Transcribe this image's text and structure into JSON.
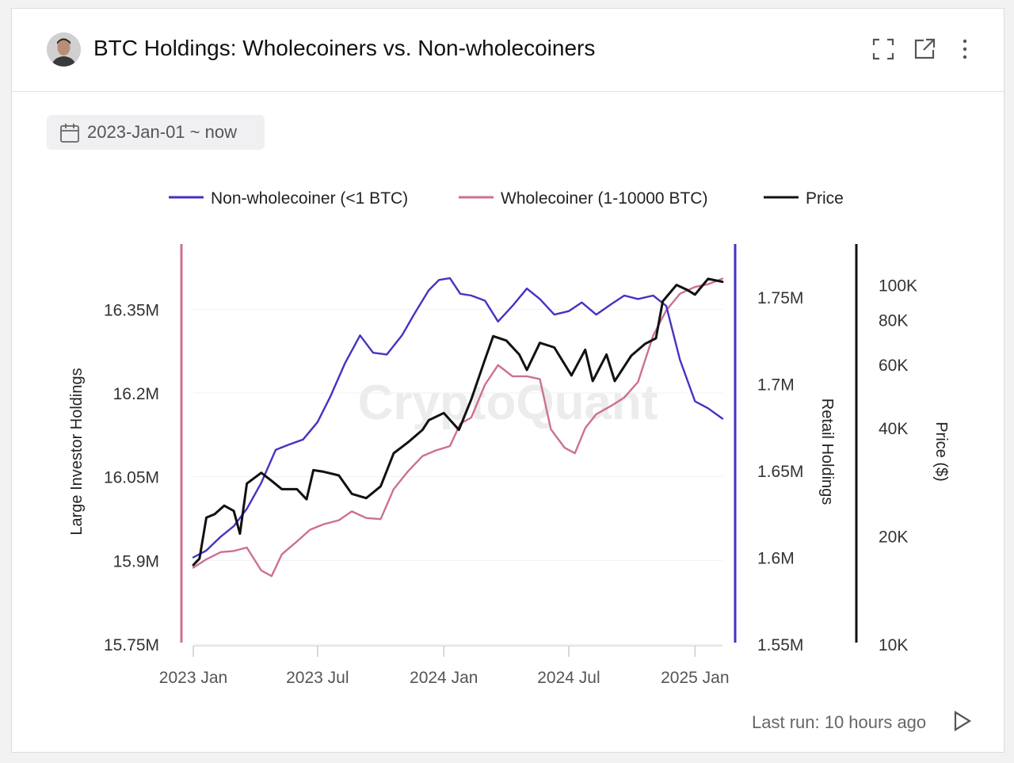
{
  "header": {
    "title": "BTC Holdings: Wholecoiners vs. Non-wholecoiners",
    "icons": [
      "fullscreen-icon",
      "open-external-icon",
      "more-vertical-icon"
    ]
  },
  "date_filter": {
    "label": "2023-Jan-01 ~ now"
  },
  "footer": {
    "last_run": "Last run: 10 hours ago"
  },
  "watermark": "CryptoQuant",
  "colors": {
    "non_wholecoiner": "#4433c2",
    "wholecoiner": "#cc6f95",
    "price": "#111111"
  },
  "chart_data": {
    "type": "line",
    "watermark": "CryptoQuant",
    "legend": [
      "Non-wholecoiner (<1 BTC)",
      "Wholecoiner (1-10000 BTC)",
      "Price"
    ],
    "legend_position": "top-center",
    "grid": true,
    "x_ticks": [
      "2023 Jan",
      "2023 Jul",
      "2024 Jan",
      "2024 Jul",
      "2025 Jan"
    ],
    "x_range": [
      "2023-01-01",
      "2025-02-10"
    ],
    "axes": {
      "left": {
        "label": "Large Investor Holdings",
        "ticks": [
          "16.35M",
          "16.2M",
          "16.05M",
          "15.9M",
          "15.75M"
        ],
        "range": [
          15.75,
          16.44
        ],
        "unit": "M BTC"
      },
      "right": {
        "label": "Retail Holdings",
        "ticks": [
          "1.75M",
          "1.7M",
          "1.65M",
          "1.6M",
          "1.55M"
        ],
        "range": [
          1.55,
          1.772
        ],
        "unit": "M BTC"
      },
      "price": {
        "label": "Price ($)",
        "ticks": [
          "100K",
          "80K",
          "60K",
          "40K",
          "20K",
          "10K"
        ],
        "range": [
          10000,
          118000
        ],
        "scale": "log"
      }
    },
    "series": [
      {
        "name": "Non-wholecoiner (<1 BTC)",
        "axis": "right",
        "color": "#4433c2",
        "x": [
          "2023-01-01",
          "2023-01-20",
          "2023-02-10",
          "2023-03-01",
          "2023-03-20",
          "2023-04-10",
          "2023-05-01",
          "2023-05-20",
          "2023-06-10",
          "2023-07-01",
          "2023-07-20",
          "2023-08-10",
          "2023-09-01",
          "2023-09-20",
          "2023-10-10",
          "2023-11-01",
          "2023-11-20",
          "2023-12-10",
          "2023-12-25",
          "2024-01-10",
          "2024-01-25",
          "2024-02-10",
          "2024-03-01",
          "2024-03-20",
          "2024-04-10",
          "2024-05-01",
          "2024-05-20",
          "2024-06-10",
          "2024-07-01",
          "2024-07-20",
          "2024-08-10",
          "2024-09-01",
          "2024-09-20",
          "2024-10-10",
          "2024-11-01",
          "2024-11-20",
          "2024-12-10",
          "2025-01-01",
          "2025-01-20",
          "2025-02-10"
        ],
        "values": [
          1.6,
          1.604,
          1.612,
          1.618,
          1.628,
          1.643,
          1.662,
          1.665,
          1.668,
          1.678,
          1.693,
          1.712,
          1.728,
          1.718,
          1.717,
          1.728,
          1.741,
          1.754,
          1.76,
          1.761,
          1.752,
          1.751,
          1.748,
          1.736,
          1.745,
          1.755,
          1.749,
          1.74,
          1.742,
          1.747,
          1.74,
          1.746,
          1.751,
          1.749,
          1.751,
          1.745,
          1.714,
          1.69,
          1.686,
          1.68
        ]
      },
      {
        "name": "Wholecoiner (1-10000 BTC)",
        "axis": "left",
        "color": "#cc6f95",
        "x": [
          "2023-01-01",
          "2023-01-20",
          "2023-02-10",
          "2023-03-01",
          "2023-03-20",
          "2023-04-10",
          "2023-04-25",
          "2023-05-10",
          "2023-06-01",
          "2023-06-20",
          "2023-07-10",
          "2023-08-01",
          "2023-08-20",
          "2023-09-10",
          "2023-10-01",
          "2023-10-20",
          "2023-11-10",
          "2023-12-01",
          "2023-12-20",
          "2024-01-10",
          "2024-01-25",
          "2024-02-10",
          "2024-03-01",
          "2024-03-20",
          "2024-04-10",
          "2024-05-01",
          "2024-05-20",
          "2024-06-05",
          "2024-06-25",
          "2024-07-10",
          "2024-07-25",
          "2024-08-10",
          "2024-09-01",
          "2024-09-20",
          "2024-10-10",
          "2024-11-01",
          "2024-11-20",
          "2024-12-10",
          "2025-01-01",
          "2025-01-20",
          "2025-02-10"
        ],
        "values": [
          15.887,
          15.902,
          15.915,
          15.917,
          15.923,
          15.882,
          15.872,
          15.911,
          15.934,
          15.955,
          15.965,
          15.972,
          15.988,
          15.976,
          15.974,
          16.028,
          16.06,
          16.087,
          16.097,
          16.105,
          16.145,
          16.156,
          16.215,
          16.25,
          16.23,
          16.23,
          16.225,
          16.135,
          16.102,
          16.092,
          16.137,
          16.162,
          16.177,
          16.192,
          16.22,
          16.303,
          16.348,
          16.378,
          16.39,
          16.395,
          16.405
        ]
      },
      {
        "name": "Price",
        "axis": "price",
        "color": "#111111",
        "x": [
          "2023-01-01",
          "2023-01-10",
          "2023-01-20",
          "2023-02-01",
          "2023-02-15",
          "2023-03-01",
          "2023-03-10",
          "2023-03-20",
          "2023-04-10",
          "2023-04-25",
          "2023-05-10",
          "2023-06-01",
          "2023-06-15",
          "2023-06-25",
          "2023-07-10",
          "2023-08-01",
          "2023-08-20",
          "2023-09-10",
          "2023-10-01",
          "2023-10-20",
          "2023-11-10",
          "2023-12-01",
          "2023-12-10",
          "2024-01-01",
          "2024-01-23",
          "2024-02-10",
          "2024-03-01",
          "2024-03-13",
          "2024-04-01",
          "2024-04-20",
          "2024-05-01",
          "2024-05-20",
          "2024-06-10",
          "2024-07-05",
          "2024-07-25",
          "2024-08-05",
          "2024-08-25",
          "2024-09-06",
          "2024-09-30",
          "2024-10-20",
          "2024-11-05",
          "2024-11-15",
          "2024-12-05",
          "2024-12-20",
          "2025-01-01",
          "2025-01-20",
          "2025-02-10"
        ],
        "values": [
          16600,
          17300,
          22500,
          23000,
          24300,
          23500,
          20300,
          28000,
          30000,
          28500,
          27000,
          27000,
          25300,
          30500,
          30200,
          29500,
          26200,
          25500,
          27500,
          34000,
          36500,
          39500,
          42000,
          44000,
          39500,
          48000,
          62000,
          72000,
          70000,
          64000,
          58000,
          69000,
          67000,
          56000,
          66000,
          54000,
          64000,
          54000,
          63500,
          68500,
          71000,
          90000,
          100000,
          97000,
          94000,
          104000,
          102000
        ]
      }
    ]
  }
}
